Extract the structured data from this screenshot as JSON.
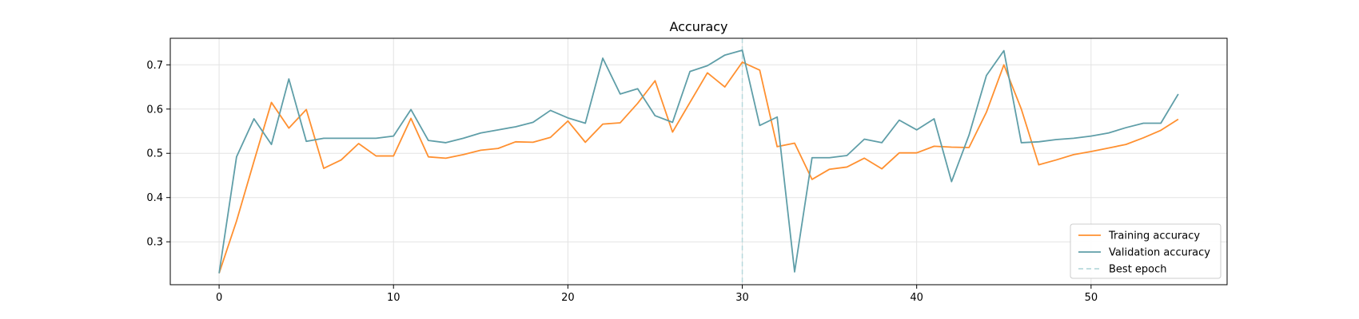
{
  "chart_data": {
    "type": "line",
    "title": "Accuracy",
    "xlabel": "",
    "ylabel": "",
    "xlim": [
      -2.8,
      57.8
    ],
    "ylim": [
      0.203,
      0.76
    ],
    "xticks": [
      0,
      10,
      20,
      30,
      40,
      50
    ],
    "yticks": [
      0.3,
      0.4,
      0.5,
      0.6,
      0.7
    ],
    "grid": true,
    "legend_position": "lower-right",
    "series": [
      {
        "name": "Training accuracy",
        "color": "#ff9030",
        "x": [
          0,
          1,
          2,
          3,
          4,
          5,
          6,
          7,
          8,
          9,
          10,
          11,
          12,
          13,
          14,
          15,
          16,
          17,
          18,
          19,
          20,
          21,
          22,
          23,
          24,
          25,
          26,
          27,
          28,
          29,
          30,
          31,
          32,
          33,
          34,
          35,
          36,
          37,
          38,
          39,
          40,
          41,
          42,
          43,
          44,
          45,
          46,
          47,
          48,
          49,
          50,
          51,
          52,
          53,
          54,
          55
        ],
        "values": [
          0.229,
          0.347,
          0.482,
          0.615,
          0.557,
          0.599,
          0.466,
          0.485,
          0.522,
          0.494,
          0.494,
          0.579,
          0.492,
          0.489,
          0.497,
          0.507,
          0.511,
          0.526,
          0.525,
          0.536,
          0.573,
          0.525,
          0.566,
          0.569,
          0.613,
          0.664,
          0.548,
          0.615,
          0.682,
          0.65,
          0.706,
          0.688,
          0.515,
          0.523,
          0.441,
          0.464,
          0.469,
          0.489,
          0.465,
          0.501,
          0.501,
          0.516,
          0.514,
          0.513,
          0.593,
          0.7,
          0.6,
          0.474,
          0.485,
          0.497,
          0.504,
          0.512,
          0.52,
          0.535,
          0.552,
          0.577
        ]
      },
      {
        "name": "Validation accuracy",
        "color": "#5f9ea8",
        "x": [
          0,
          1,
          2,
          3,
          4,
          5,
          6,
          7,
          8,
          9,
          10,
          11,
          12,
          13,
          14,
          15,
          16,
          17,
          18,
          19,
          20,
          21,
          22,
          23,
          24,
          25,
          26,
          27,
          28,
          29,
          30,
          31,
          32,
          33,
          34,
          35,
          36,
          37,
          38,
          39,
          40,
          41,
          42,
          43,
          44,
          45,
          46,
          47,
          48,
          49,
          50,
          51,
          52,
          53,
          54,
          55
        ],
        "values": [
          0.229,
          0.492,
          0.578,
          0.52,
          0.668,
          0.527,
          0.534,
          0.534,
          0.534,
          0.534,
          0.539,
          0.599,
          0.529,
          0.524,
          0.534,
          0.546,
          0.553,
          0.56,
          0.57,
          0.597,
          0.58,
          0.568,
          0.715,
          0.634,
          0.646,
          0.585,
          0.57,
          0.685,
          0.698,
          0.722,
          0.733,
          0.563,
          0.582,
          0.232,
          0.49,
          0.49,
          0.495,
          0.532,
          0.524,
          0.575,
          0.553,
          0.578,
          0.436,
          0.541,
          0.676,
          0.732,
          0.524,
          0.526,
          0.531,
          0.534,
          0.539,
          0.546,
          0.558,
          0.568,
          0.568,
          0.634
        ]
      }
    ],
    "vlines": [
      {
        "name": "Best epoch",
        "x": 30,
        "color": "#b7d9dc",
        "style": "dashed"
      }
    ]
  }
}
